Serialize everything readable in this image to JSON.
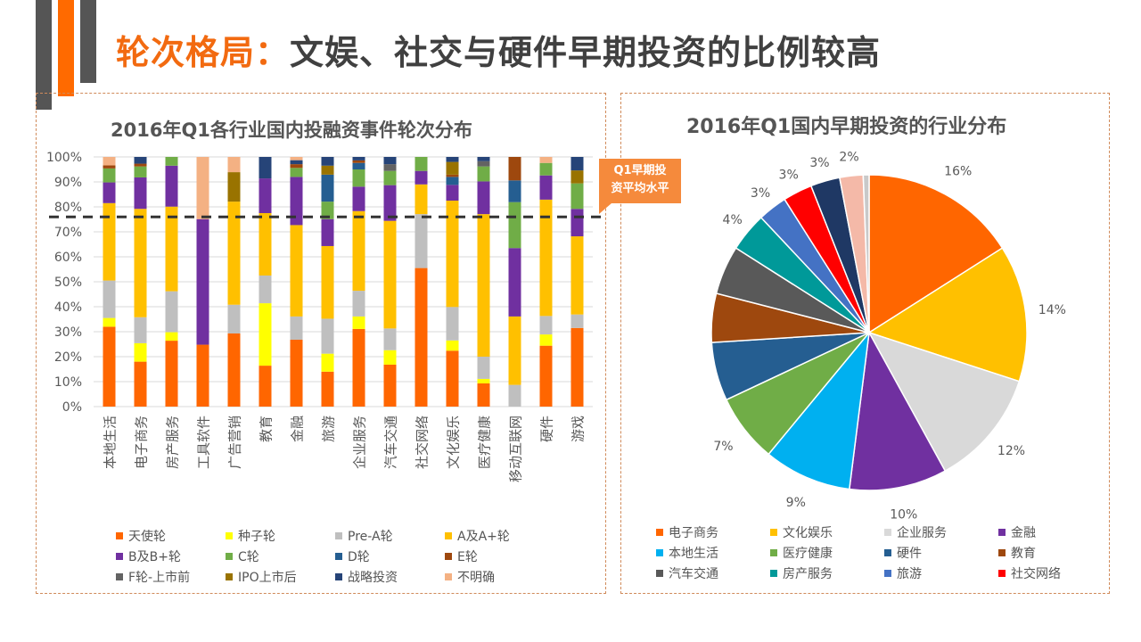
{
  "header": {
    "title_highlight": "轮次格局：",
    "title_rest": "文娱、社交与硬件早期投资的比例较高"
  },
  "callout": {
    "line1": "Q1早期投",
    "line2": "资平均水平"
  },
  "chart_data": [
    {
      "type": "bar",
      "stacked": true,
      "title": "2016年Q1各行业国内投融资事件轮次分布",
      "ylim": [
        0,
        100
      ],
      "yticks": [
        "0%",
        "10%",
        "20%",
        "30%",
        "40%",
        "50%",
        "60%",
        "70%",
        "80%",
        "90%",
        "100%"
      ],
      "reference_line": {
        "value": 76,
        "label": "Q1早期投资平均水平"
      },
      "categories": [
        "本地生活",
        "电子商务",
        "房产服务",
        "工具软件",
        "广告营销",
        "教育",
        "金融",
        "旅游",
        "企业服务",
        "汽车交通",
        "社交网络",
        "文化娱乐",
        "医疗健康",
        "移动互联网",
        "硬件",
        "游戏"
      ],
      "series": [
        {
          "name": "天使轮",
          "color": "#ff6600",
          "values": [
            32,
            18,
            26.4,
            24.8,
            29.3,
            16.4,
            26.8,
            14,
            31.1,
            16.8,
            55.5,
            22.4,
            9.3,
            0,
            24.4,
            31.5
          ]
        },
        {
          "name": "种子轮",
          "color": "#ffff00",
          "values": [
            3.5,
            7.4,
            3.4,
            0,
            0,
            25,
            0,
            7.2,
            5,
            5.8,
            0,
            4.1,
            1.8,
            0,
            4.5,
            0
          ]
        },
        {
          "name": "Pre-A轮",
          "color": "#bfbfbf",
          "values": [
            15,
            10.4,
            16.4,
            0,
            11.5,
            11.1,
            9.3,
            14,
            10.3,
            8.7,
            21.6,
            13.4,
            8.9,
            8.7,
            7.4,
            5.4
          ]
        },
        {
          "name": "A及A+轮",
          "color": "#ffc000",
          "values": [
            31,
            43.4,
            33.9,
            0,
            41.3,
            25,
            36.6,
            29.1,
            31.9,
            43.1,
            11.9,
            42.6,
            57.1,
            27.4,
            46.6,
            31.3
          ]
        },
        {
          "name": "B及B+轮",
          "color": "#7030a0",
          "values": [
            8.3,
            12.6,
            16.4,
            50.3,
            0,
            13.9,
            19.3,
            10.8,
            9.8,
            14.3,
            5.4,
            6.3,
            13.1,
            27.4,
            9.7,
            11
          ]
        },
        {
          "name": "C轮",
          "color": "#70ad47",
          "values": [
            5.6,
            4.4,
            3.5,
            0,
            0,
            0,
            3.6,
            7,
            6.9,
            5.7,
            5.6,
            0,
            6,
            18.4,
            5,
            10.2
          ]
        },
        {
          "name": "D轮",
          "color": "#255e91",
          "values": [
            0,
            0,
            0,
            0,
            0,
            0,
            0,
            10.8,
            2.6,
            0,
            0,
            3.2,
            0,
            8.7,
            0,
            0
          ]
        },
        {
          "name": "E轮",
          "color": "#9e480e",
          "values": [
            1.2,
            1.1,
            0,
            0,
            0,
            0,
            1.5,
            0,
            1,
            0,
            0,
            0.9,
            0,
            9.4,
            0,
            0
          ]
        },
        {
          "name": "F轮-上市前",
          "color": "#636363",
          "values": [
            0,
            0,
            0,
            0,
            0,
            0,
            0,
            0,
            0,
            2.7,
            0,
            0,
            2.1,
            0,
            0,
            0
          ]
        },
        {
          "name": "IPO上市后",
          "color": "#997300",
          "values": [
            0,
            0,
            0,
            0,
            11.8,
            0,
            0,
            3.6,
            0,
            0,
            0,
            5.1,
            0,
            0,
            0,
            5.2
          ]
        },
        {
          "name": "战略投资",
          "color": "#264478",
          "values": [
            0,
            2.7,
            0,
            0,
            0,
            8.6,
            1.6,
            3.5,
            1.4,
            2.9,
            0,
            2,
            1.7,
            0,
            0,
            5.4
          ]
        },
        {
          "name": "不明确",
          "color": "#f4b183",
          "values": [
            3.4,
            0,
            0,
            24.9,
            6.1,
            0,
            1.3,
            0,
            0,
            0,
            0,
            0,
            0,
            0,
            2.4,
            0
          ]
        }
      ]
    },
    {
      "type": "pie",
      "title": "2016年Q1国内早期投资的行业分布",
      "slices": [
        {
          "name": "电子商务",
          "value": 16,
          "label": "16%",
          "color": "#ff6600"
        },
        {
          "name": "文化娱乐",
          "value": 14,
          "label": "14%",
          "color": "#ffc000"
        },
        {
          "name": "企业服务",
          "value": 12,
          "label": "12%",
          "color": "#d9d9d9"
        },
        {
          "name": "金融",
          "value": 10,
          "label": "10%",
          "color": "#7030a0"
        },
        {
          "name": "本地生活",
          "value": 9,
          "label": "9%",
          "color": "#00b0f0"
        },
        {
          "name": "医疗健康",
          "value": 7,
          "label": "7%",
          "color": "#70ad47"
        },
        {
          "name": "硬件",
          "value": 6,
          "label": null,
          "color": "#255e91"
        },
        {
          "name": "教育",
          "value": 5,
          "label": null,
          "color": "#9e480e"
        },
        {
          "name": "汽车交通",
          "value": 5,
          "label": null,
          "color": "#595959"
        },
        {
          "name": "房产服务",
          "value": 4,
          "label": "4%",
          "color": "#009999"
        },
        {
          "name": "旅游",
          "value": 3,
          "label": "3%",
          "color": "#4472c4"
        },
        {
          "name": "社交网络",
          "value": 3,
          "label": "3%",
          "color": "#ff0000"
        },
        {
          "name": null,
          "value": 3,
          "label": "3%",
          "color": "#1f3864"
        },
        {
          "name": null,
          "value": 2.4,
          "label": "2%",
          "color": "#f4b9a8"
        },
        {
          "name": null,
          "value": 0.6,
          "label": null,
          "color": "#c9c9c9"
        }
      ]
    }
  ]
}
